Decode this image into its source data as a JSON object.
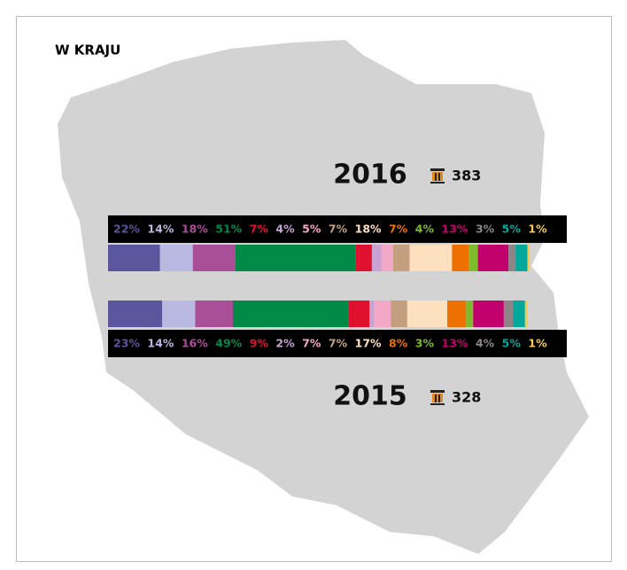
{
  "chart_data": {
    "type": "stacked_bar",
    "title": "W KRAJU",
    "colors": [
      "#5b559d",
      "#b9b8e0",
      "#a94f97",
      "#008a47",
      "#e0102f",
      "#c9a2d4",
      "#f4a8c8",
      "#c39f7f",
      "#fde0bf",
      "#ee7100",
      "#7dbb2d",
      "#c2006b",
      "#8e8487",
      "#00a89c",
      "#f7c94d"
    ],
    "bars": [
      {
        "label": "2016",
        "count": 383,
        "values": [
          22,
          14,
          18,
          51,
          7,
          4,
          5,
          7,
          18,
          7,
          4,
          13,
          3,
          5,
          1
        ],
        "value_labels": [
          "22%",
          "14%",
          "18%",
          "51%",
          "7%",
          "4%",
          "5%",
          "7%",
          "18%",
          "7%",
          "4%",
          "13%",
          "3%",
          "5%",
          "1%"
        ]
      },
      {
        "label": "2015",
        "count": 328,
        "values": [
          23,
          14,
          16,
          49,
          9,
          2,
          7,
          7,
          17,
          8,
          3,
          13,
          4,
          5,
          1
        ],
        "value_labels": [
          "23%",
          "14%",
          "16%",
          "49%",
          "9%",
          "2%",
          "7%",
          "7%",
          "17%",
          "8%",
          "3%",
          "13%",
          "4%",
          "5%",
          "1%"
        ]
      }
    ]
  }
}
